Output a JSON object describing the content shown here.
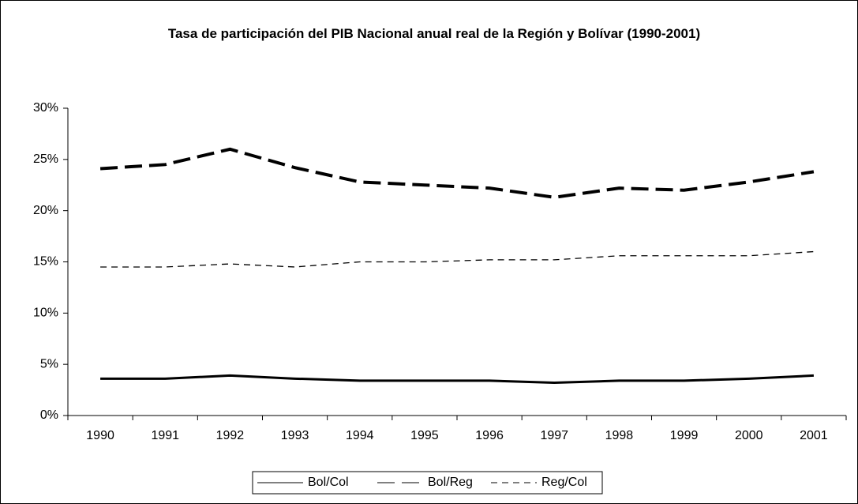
{
  "chart_data": {
    "type": "line",
    "title": "Tasa de participación del PIB Nacional anual real de la Región y Bolívar  (1990-2001)",
    "categories": [
      "1990",
      "1991",
      "1992",
      "1993",
      "1994",
      "1995",
      "1996",
      "1997",
      "1998",
      "1999",
      "2000",
      "2001"
    ],
    "series": [
      {
        "name": "Bol/Col",
        "color": "#000000",
        "dash": "solid",
        "values": [
          3.6,
          3.6,
          3.9,
          3.6,
          3.4,
          3.4,
          3.4,
          3.2,
          3.4,
          3.4,
          3.6,
          3.9
        ]
      },
      {
        "name": "Bol/Reg",
        "color": "#000000",
        "dash": "long",
        "values": [
          24.1,
          24.5,
          26.0,
          24.2,
          22.8,
          22.5,
          22.2,
          21.3,
          22.2,
          22.0,
          22.8,
          23.8
        ]
      },
      {
        "name": "Reg/Col",
        "color": "#000000",
        "dash": "short",
        "values": [
          14.5,
          14.5,
          14.8,
          14.5,
          15.0,
          15.0,
          15.2,
          15.2,
          15.6,
          15.6,
          15.6,
          16.0
        ]
      }
    ],
    "ylim": [
      0,
      30
    ],
    "yticks": [
      {
        "value": 0,
        "label": "0%"
      },
      {
        "value": 5,
        "label": "5%"
      },
      {
        "value": 10,
        "label": "10%"
      },
      {
        "value": 15,
        "label": "15%"
      },
      {
        "value": 20,
        "label": "20%"
      },
      {
        "value": 25,
        "label": "25%"
      },
      {
        "value": 30,
        "label": "30%"
      }
    ],
    "grid": false,
    "legend": "bottom"
  }
}
